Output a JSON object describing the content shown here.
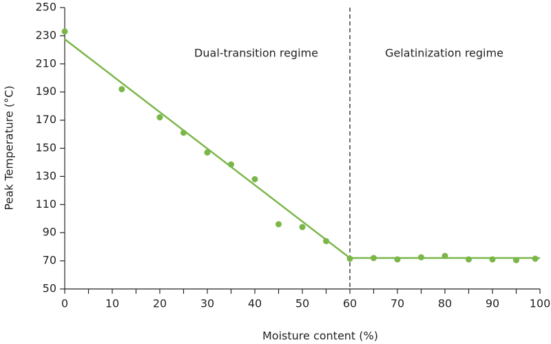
{
  "chart_data": {
    "type": "scatter",
    "xlabel": "Moisture content (%)",
    "ylabel": "Peak Temperature (°C)",
    "color": "#7ab648",
    "points": {
      "x": [
        0,
        12,
        20,
        25,
        30,
        35,
        40,
        45,
        50,
        55,
        60,
        65,
        70,
        75,
        80,
        85,
        90,
        95,
        99
      ],
      "values": [
        233,
        192,
        172,
        161,
        147,
        138.5,
        128,
        96,
        94,
        84,
        71.5,
        72,
        71,
        72.5,
        73.5,
        71,
        71,
        70.5,
        71.5
      ]
    },
    "fit": {
      "x": [
        0,
        60,
        100
      ],
      "values": [
        227.5,
        72,
        72
      ]
    },
    "threshold_x": 60,
    "annotations": [
      "Dual-transition regime",
      "Gelatinization regime"
    ],
    "xlim": [
      0,
      100
    ],
    "xticks": [
      0,
      10,
      20,
      30,
      40,
      50,
      60,
      70,
      80,
      90,
      100
    ],
    "xminorticks": [
      5,
      15,
      25,
      35,
      45,
      55,
      65,
      75,
      85,
      95
    ],
    "ylim": [
      50,
      250
    ],
    "yticks": [
      50,
      70,
      90,
      110,
      130,
      150,
      170,
      190,
      210,
      230,
      250
    ]
  }
}
